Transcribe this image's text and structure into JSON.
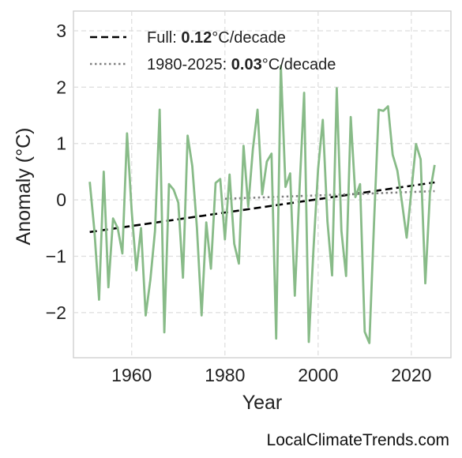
{
  "chart_data": {
    "type": "line",
    "xlabel": "Year",
    "ylabel": "Anomaly (°C)",
    "xlim": [
      1947.5,
      2028.5
    ],
    "ylim": [
      -2.8,
      3.35
    ],
    "xticks": [
      1960,
      1980,
      2000,
      2020
    ],
    "xtick_labels": [
      "1960",
      "1980",
      "2000",
      "2020"
    ],
    "yticks": [
      -2,
      -1,
      0,
      1,
      2,
      3
    ],
    "ytick_labels": [
      "−2",
      "−1",
      "0",
      "1",
      "2",
      "3"
    ],
    "grid": true,
    "legend_position": "top-left",
    "series": [
      {
        "kind": "anomaly",
        "color": "#88bb88",
        "x": [
          1951,
          1952,
          1953,
          1954,
          1955,
          1956,
          1957,
          1958,
          1959,
          1960,
          1961,
          1962,
          1963,
          1964,
          1965,
          1966,
          1967,
          1968,
          1969,
          1970,
          1971,
          1972,
          1973,
          1974,
          1975,
          1976,
          1977,
          1978,
          1979,
          1980,
          1981,
          1982,
          1983,
          1984,
          1985,
          1986,
          1987,
          1988,
          1989,
          1990,
          1991,
          1992,
          1993,
          1994,
          1995,
          1996,
          1997,
          1998,
          1999,
          2000,
          2001,
          2002,
          2003,
          2004,
          2005,
          2006,
          2007,
          2008,
          2009,
          2010,
          2011,
          2012,
          2013,
          2014,
          2015,
          2016,
          2017,
          2018,
          2019,
          2020,
          2021,
          2022,
          2023,
          2024,
          2025
        ],
        "y": [
          0.32,
          -0.55,
          -1.77,
          0.5,
          -1.55,
          -0.33,
          -0.5,
          -0.95,
          1.18,
          -0.2,
          -1.25,
          -0.5,
          -2.05,
          -1.42,
          -0.55,
          1.6,
          -2.35,
          0.28,
          0.18,
          -0.05,
          -1.38,
          1.14,
          0.6,
          -0.5,
          -2.05,
          -0.4,
          -1.22,
          0.3,
          0.37,
          -0.7,
          0.45,
          -0.78,
          -1.13,
          0.96,
          -0.12,
          0.9,
          1.6,
          0.1,
          0.68,
          0.82,
          -2.46,
          2.38,
          0.23,
          0.47,
          -1.7,
          0.17,
          1.9,
          -2.52,
          -0.88,
          0.55,
          1.42,
          -0.38,
          -1.34,
          1.98,
          -0.55,
          -1.35,
          1.47,
          0.05,
          0.28,
          -2.34,
          -2.54,
          -0.4,
          1.6,
          1.58,
          1.66,
          0.8,
          0.52,
          -0.05,
          -0.67,
          0.15,
          0.99,
          0.72,
          -1.48,
          0.13,
          0.62
        ]
      }
    ],
    "trends": [
      {
        "legend_label": "Full: ",
        "value_label": "0.12",
        "unit_label": "°C/decade",
        "color": "#000000",
        "dash": "dashed",
        "x": [
          1951,
          2025
        ],
        "y": [
          -0.57,
          0.31
        ]
      },
      {
        "legend_label": "1980-2025: ",
        "value_label": "0.03",
        "unit_label": "°C/decade",
        "color": "#808080",
        "dash": "dotted",
        "x": [
          1980,
          2025
        ],
        "y": [
          0.02,
          0.155
        ]
      }
    ]
  },
  "watermark": "LocalClimateTrends.com"
}
